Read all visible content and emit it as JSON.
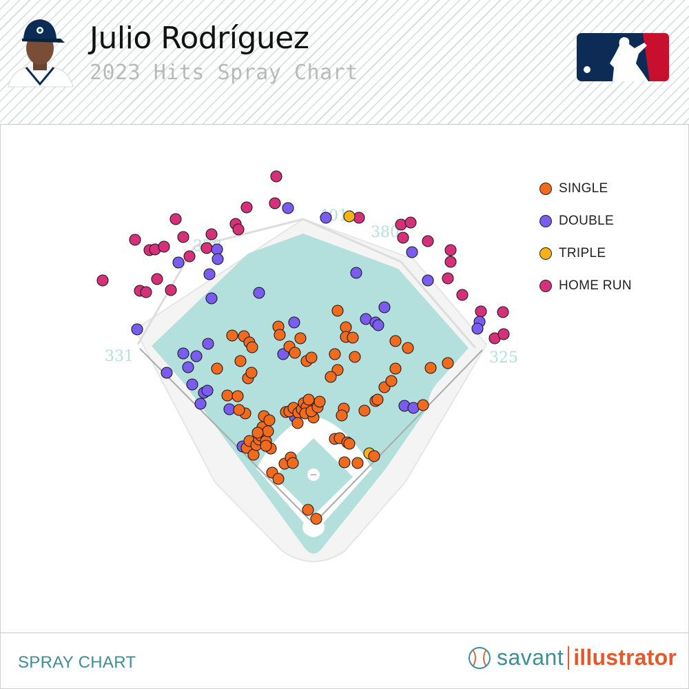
{
  "header": {
    "player_name": "Julio Rodríguez",
    "subtitle": "2023 Hits Spray Chart"
  },
  "footer": {
    "section_label": "SPRAY CHART",
    "brand_left": "savant",
    "brand_right": "illustrator"
  },
  "colors": {
    "single": "#f26a1b",
    "double": "#7a5cf0",
    "triple": "#f5b316",
    "home_run": "#d6307a",
    "field_fill": "#b3e0dc",
    "fence_labels": "#b3e0dc",
    "brand_teal": "#3a8f98",
    "brand_orange": "#e8572c"
  },
  "chart_data": {
    "type": "scatter",
    "title": "2023 Hits Spray Chart",
    "fence_distances": {
      "left_field": "331",
      "left_center": "378",
      "center": "401",
      "right_center": "380",
      "right_field": "325"
    },
    "legend": [
      {
        "key": "single",
        "label": "SINGLE"
      },
      {
        "key": "double",
        "label": "DOUBLE"
      },
      {
        "key": "triple",
        "label": "TRIPLE"
      },
      {
        "key": "home_run",
        "label": "HOME RUN"
      }
    ],
    "series": [
      {
        "key": "home_run",
        "name": "HOME RUN",
        "points": [
          [
            149,
            407
          ],
          [
            196,
            348
          ],
          [
            203,
            422
          ],
          [
            212,
            424
          ],
          [
            217,
            363
          ],
          [
            225,
            362
          ],
          [
            228,
            405
          ],
          [
            238,
            358
          ],
          [
            248,
            421
          ],
          [
            255,
            318
          ],
          [
            266,
            344
          ],
          [
            275,
            372
          ],
          [
            300,
            360
          ],
          [
            307,
            340
          ],
          [
            342,
            325
          ],
          [
            346,
            333
          ],
          [
            358,
            301
          ],
          [
            399,
            295
          ],
          [
            401,
            256
          ],
          [
            521,
            316
          ],
          [
            582,
            326
          ],
          [
            596,
            323
          ],
          [
            585,
            345
          ],
          [
            621,
            350
          ],
          [
            654,
            363
          ],
          [
            654,
            380
          ],
          [
            650,
            404
          ],
          [
            671,
            428
          ],
          [
            698,
            452
          ],
          [
            730,
            453
          ],
          [
            718,
            491
          ],
          [
            731,
            485
          ]
        ]
      },
      {
        "key": "double",
        "name": "DOUBLE",
        "points": [
          [
            199,
            478
          ],
          [
            242,
            541
          ],
          [
            259,
            381
          ],
          [
            266,
            513
          ],
          [
            273,
            533
          ],
          [
            279,
            558
          ],
          [
            285,
            517
          ],
          [
            291,
            586
          ],
          [
            296,
            570
          ],
          [
            301,
            567
          ],
          [
            302,
            499
          ],
          [
            304,
            398
          ],
          [
            307,
            433
          ],
          [
            315,
            362
          ],
          [
            316,
            376
          ],
          [
            333,
            594
          ],
          [
            352,
            648
          ],
          [
            376,
            425
          ],
          [
            411,
            514
          ],
          [
            418,
            302
          ],
          [
            427,
            468
          ],
          [
            428,
            605
          ],
          [
            473,
            316
          ],
          [
            517,
            396
          ],
          [
            531,
            463
          ],
          [
            545,
            468
          ],
          [
            549,
            472
          ],
          [
            558,
            446
          ],
          [
            587,
            589
          ],
          [
            600,
            592
          ],
          [
            598,
            366
          ],
          [
            621,
            407
          ],
          [
            696,
            467
          ],
          [
            693,
            477
          ]
        ]
      },
      {
        "key": "triple",
        "name": "TRIPLE",
        "points": [
          [
            507,
            314
          ],
          [
            536,
            658
          ]
        ]
      },
      {
        "key": "single",
        "name": "SINGLE",
        "points": [
          [
            315,
            535
          ],
          [
            330,
            574
          ],
          [
            337,
            487
          ],
          [
            345,
            575
          ],
          [
            349,
            524
          ],
          [
            354,
            488
          ],
          [
            356,
            600
          ],
          [
            360,
            549
          ],
          [
            362,
            497
          ],
          [
            365,
            541
          ],
          [
            366,
            504
          ],
          [
            347,
            595
          ],
          [
            358,
            650
          ],
          [
            362,
            640
          ],
          [
            368,
            660
          ],
          [
            372,
            646
          ],
          [
            376,
            638
          ],
          [
            378,
            632
          ],
          [
            381,
            620
          ],
          [
            383,
            604
          ],
          [
            386,
            640
          ],
          [
            389,
            626
          ],
          [
            391,
            610
          ],
          [
            393,
            651
          ],
          [
            386,
            647
          ],
          [
            374,
            628
          ],
          [
            395,
            686
          ],
          [
            404,
            695
          ],
          [
            413,
            673
          ],
          [
            415,
            598
          ],
          [
            422,
            664
          ],
          [
            425,
            672
          ],
          [
            404,
            474
          ],
          [
            406,
            486
          ],
          [
            420,
            503
          ],
          [
            428,
            512
          ],
          [
            436,
            491
          ],
          [
            445,
            524
          ],
          [
            452,
            519
          ],
          [
            420,
            597
          ],
          [
            426,
            592
          ],
          [
            433,
            599
          ],
          [
            438,
            594
          ],
          [
            441,
            585
          ],
          [
            445,
            591
          ],
          [
            443,
            600
          ],
          [
            448,
            580
          ],
          [
            455,
            606
          ],
          [
            452,
            597
          ],
          [
            461,
            591
          ],
          [
            464,
            583
          ],
          [
            432,
            614
          ],
          [
            486,
            514
          ],
          [
            490,
            537
          ],
          [
            480,
            547
          ],
          [
            490,
            451
          ],
          [
            502,
            475
          ],
          [
            502,
            489
          ],
          [
            512,
            490
          ],
          [
            515,
            518
          ],
          [
            499,
            593
          ],
          [
            496,
            603
          ],
          [
            486,
            637
          ],
          [
            493,
            636
          ],
          [
            504,
            642
          ],
          [
            507,
            644
          ],
          [
            500,
            671
          ],
          [
            519,
            672
          ],
          [
            529,
            596
          ],
          [
            545,
            582
          ],
          [
            548,
            580
          ],
          [
            558,
            562
          ],
          [
            568,
            553
          ],
          [
            574,
            535
          ],
          [
            574,
            495
          ],
          [
            592,
            505
          ],
          [
            614,
            588
          ],
          [
            625,
            534
          ],
          [
            650,
            527
          ],
          [
            543,
            662
          ],
          [
            447,
            740
          ],
          [
            459,
            753
          ]
        ]
      }
    ]
  }
}
